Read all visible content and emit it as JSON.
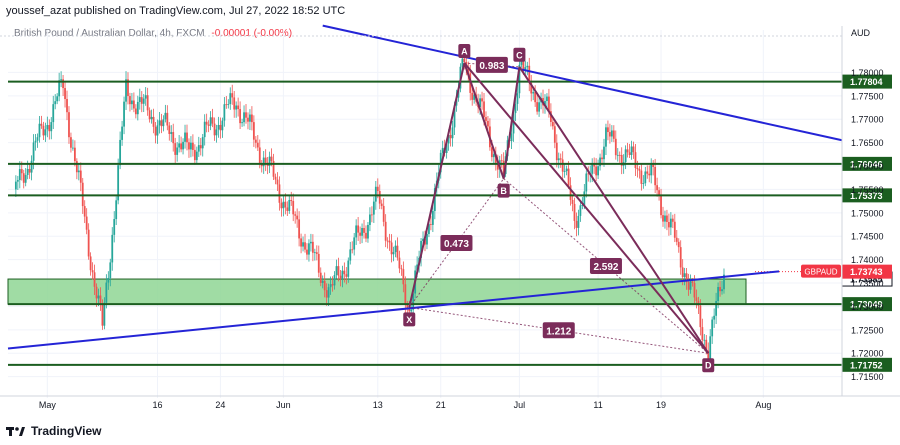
{
  "header": {
    "publisher": "youssef_azat published on TradingView.com, Jul 27, 2022 18:52 UTC",
    "instrument": "British Pound / Australian Dollar, 4h, FXCM",
    "change": "-0.00001 (-0.00%)"
  },
  "footer": {
    "brand": "TradingView"
  },
  "colors": {
    "up": "#26a69a",
    "down": "#ef5350",
    "hline": "#1b5e20",
    "trend": "#2424d6",
    "pattern": "#7b2c5a",
    "zone": "#8fd694",
    "price_tag": "#f23645",
    "label_bg": "#1b5e20"
  },
  "chart_data": {
    "type": "candlestick",
    "symbol": "GBPAUD",
    "currency": "AUD",
    "timeframe": "4h",
    "yaxis_ticks": [
      "1.78000",
      "1.77500",
      "1.77000",
      "1.76500",
      "1.76000",
      "1.75500",
      "1.75000",
      "1.74500",
      "1.74000",
      "1.73500",
      "1.73000",
      "1.72500",
      "1.72000",
      "1.71500"
    ],
    "xaxis_ticks": [
      "May",
      "16",
      "24",
      "Jun",
      "13",
      "21",
      "Jul",
      "11",
      "19",
      "Aug"
    ],
    "ylim": [
      1.7115,
      1.7865
    ],
    "horizontal_levels": [
      "1.77804",
      "1.76046",
      "1.75373",
      "1.73049",
      "1.71752"
    ],
    "current_price": {
      "symbol": "GBPAUD",
      "value": "1.73743"
    },
    "zone": {
      "top": "1.73585",
      "bottom": "1.73049"
    },
    "harmonic_pattern": {
      "points": [
        {
          "label": "X",
          "date": "2022-06-17",
          "price": 1.7298
        },
        {
          "label": "A",
          "date": "2022-06-24",
          "price": 1.782
        },
        {
          "label": "B",
          "date": "2022-06-29",
          "price": 1.7573
        },
        {
          "label": "C",
          "date": "2022-07-01",
          "price": 1.7812
        },
        {
          "label": "D",
          "date": "2022-07-25",
          "price": 1.72
        }
      ],
      "ratios": [
        "0.983",
        "0.473",
        "2.592",
        "1.212"
      ]
    },
    "trendlines": [
      {
        "name": "descending",
        "from": {
          "date": "2022-06-06",
          "price": 1.79
        },
        "to": {
          "date": "2022-08-11",
          "price": 1.7655
        }
      },
      {
        "name": "ascending",
        "from": {
          "date": "2022-04-27",
          "price": 1.721
        },
        "to": {
          "date": "2022-08-03",
          "price": 1.7375
        }
      }
    ]
  }
}
